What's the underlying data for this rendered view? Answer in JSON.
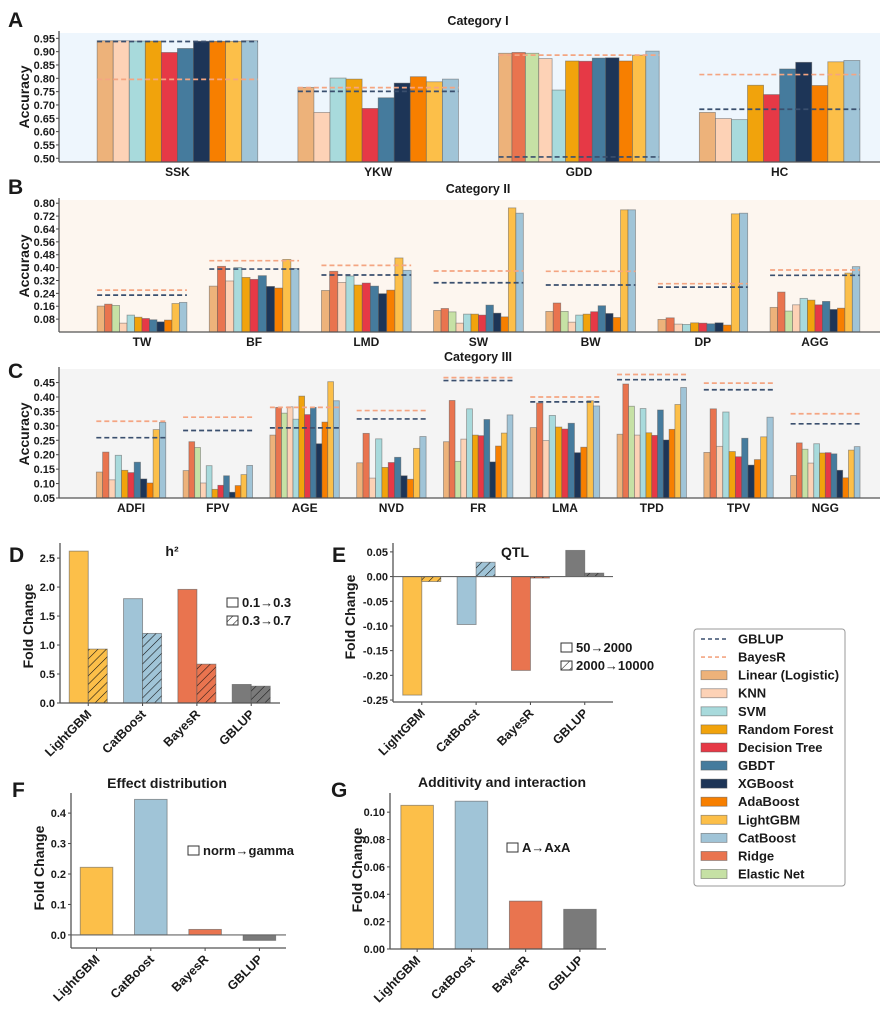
{
  "models": [
    {
      "name": "Linear (Logistic)",
      "color": "#EDB27A"
    },
    {
      "name": "Ridge",
      "color": "#E9744F"
    },
    {
      "name": "Elastic Net",
      "color": "#C6E1A5"
    },
    {
      "name": "KNN",
      "color": "#FDD2B6"
    },
    {
      "name": "SVM",
      "color": "#A8DADC"
    },
    {
      "name": "Random Forest",
      "color": "#F1A30C"
    },
    {
      "name": "Decision Tree",
      "color": "#E63946"
    },
    {
      "name": "GBDT",
      "color": "#457B9D"
    },
    {
      "name": "XGBoost",
      "color": "#1D3557"
    },
    {
      "name": "AdaBoost",
      "color": "#F77F00"
    },
    {
      "name": "LightGBM",
      "color": "#FCBF49"
    },
    {
      "name": "CatBoost",
      "color": "#A0C4D7"
    }
  ],
  "reference_colors": {
    "GBLUP": "#3A4F6E",
    "BayesR": "#F4A582"
  },
  "method_colors": {
    "LightGBM": "#FCBF49",
    "CatBoost": "#A0C4D7",
    "BayesR": "#E9744F",
    "GBLUP": "#7A7A7A"
  },
  "legend": {
    "items": [
      {
        "label": "GBLUP",
        "kind": "dashed-line",
        "color": "#3A4F6E"
      },
      {
        "label": "BayesR",
        "kind": "dashed-line",
        "color": "#F4A582"
      },
      {
        "label": "Linear (Logistic)",
        "kind": "patch",
        "color": "#EDB27A"
      },
      {
        "label": "KNN",
        "kind": "patch",
        "color": "#FDD2B6"
      },
      {
        "label": "SVM",
        "kind": "patch",
        "color": "#A8DADC"
      },
      {
        "label": "Random Forest",
        "kind": "patch",
        "color": "#F1A30C"
      },
      {
        "label": "Decision Tree",
        "kind": "patch",
        "color": "#E63946"
      },
      {
        "label": "GBDT",
        "kind": "patch",
        "color": "#457B9D"
      },
      {
        "label": "XGBoost",
        "kind": "patch",
        "color": "#1D3557"
      },
      {
        "label": "AdaBoost",
        "kind": "patch",
        "color": "#F77F00"
      },
      {
        "label": "LightGBM",
        "kind": "patch",
        "color": "#FCBF49"
      },
      {
        "label": "CatBoost",
        "kind": "patch",
        "color": "#A0C4D7"
      },
      {
        "label": "Ridge",
        "kind": "patch",
        "color": "#E9744F"
      },
      {
        "label": "Elastic Net",
        "kind": "patch",
        "color": "#C6E1A5"
      }
    ]
  },
  "chart_data": [
    {
      "panel": "A",
      "type": "bar",
      "title": "Category I",
      "xlabel": "",
      "ylabel": "Accuracy",
      "categories": [
        "SSK",
        "YKW",
        "GDD",
        "HC"
      ],
      "xlim": [
        -0.59,
        3.5
      ],
      "ylim": [
        0.486,
        0.97
      ],
      "yticks": [
        0.5,
        0.55,
        0.6,
        0.65,
        0.7,
        0.75,
        0.8,
        0.85,
        0.9,
        0.95
      ],
      "ytick_labels": [
        "0.50",
        "0.55",
        "0.60",
        "0.65",
        "0.70",
        "0.75",
        "0.80",
        "0.85",
        "0.90",
        "0.95"
      ],
      "series": [
        {
          "name": "Linear (Logistic)",
          "values": [
            0.941,
            0.766,
            0.894,
            0.672
          ]
        },
        {
          "name": "Ridge",
          "values": [
            null,
            null,
            0.897,
            null
          ]
        },
        {
          "name": "Elastic Net",
          "values": [
            null,
            null,
            0.894,
            null
          ]
        },
        {
          "name": "KNN",
          "values": [
            0.941,
            0.672,
            0.874,
            0.649
          ]
        },
        {
          "name": "SVM",
          "values": [
            0.94,
            0.801,
            0.756,
            0.645
          ]
        },
        {
          "name": "Random Forest",
          "values": [
            0.94,
            0.797,
            0.865,
            0.774
          ]
        },
        {
          "name": "Decision Tree",
          "values": [
            0.897,
            0.687,
            0.864,
            0.739
          ]
        },
        {
          "name": "GBDT",
          "values": [
            0.912,
            0.727,
            0.876,
            0.835
          ]
        },
        {
          "name": "XGBoost",
          "values": [
            0.939,
            0.782,
            0.877,
            0.86
          ]
        },
        {
          "name": "AdaBoost",
          "values": [
            0.939,
            0.806,
            0.865,
            0.773
          ]
        },
        {
          "name": "LightGBM",
          "values": [
            0.939,
            0.787,
            0.887,
            0.862
          ]
        },
        {
          "name": "CatBoost",
          "values": [
            0.941,
            0.797,
            0.902,
            0.867
          ]
        }
      ],
      "reference_lines": [
        {
          "name": "GBLUP",
          "style": "dashed",
          "values": [
            0.938,
            0.751,
            0.505,
            0.684
          ]
        },
        {
          "name": "BayesR",
          "style": "dashed",
          "values": [
            0.796,
            0.765,
            0.887,
            0.814
          ]
        }
      ]
    },
    {
      "panel": "B",
      "type": "bar",
      "title": "Category II",
      "xlabel": "",
      "ylabel": "Accuracy",
      "categories": [
        "TW",
        "BF",
        "LMD",
        "SW",
        "BW",
        "DP",
        "AGG"
      ],
      "xlim": [
        -0.74,
        6.58
      ],
      "ylim": [
        0,
        0.82
      ],
      "yticks": [
        0.08,
        0.16,
        0.24,
        0.32,
        0.4,
        0.48,
        0.56,
        0.64,
        0.72,
        0.8
      ],
      "ytick_labels": [
        "0.08",
        "0.16",
        "0.24",
        "0.32",
        "0.40",
        "0.48",
        "0.56",
        "0.64",
        "0.72",
        "0.80"
      ],
      "series": [
        {
          "name": "Linear (Logistic)",
          "values": [
            0.161,
            0.285,
            0.258,
            0.134,
            0.128,
            0.078,
            0.153
          ]
        },
        {
          "name": "Ridge",
          "values": [
            0.173,
            0.408,
            0.377,
            0.146,
            0.18,
            0.088,
            0.248
          ]
        },
        {
          "name": "Elastic Net",
          "values": [
            0.165,
            null,
            null,
            0.125,
            0.128,
            null,
            0.13
          ]
        },
        {
          "name": "KNN",
          "values": [
            0.055,
            0.317,
            0.308,
            0.055,
            0.061,
            0.049,
            0.169
          ]
        },
        {
          "name": "SVM",
          "values": [
            0.105,
            0.4,
            0.348,
            0.111,
            0.105,
            0.047,
            0.209
          ]
        },
        {
          "name": "Random Forest",
          "values": [
            0.092,
            0.339,
            0.292,
            0.111,
            0.111,
            0.057,
            0.198
          ]
        },
        {
          "name": "Decision Tree",
          "values": [
            0.084,
            0.327,
            0.304,
            0.105,
            0.126,
            0.055,
            0.169
          ]
        },
        {
          "name": "GBDT",
          "values": [
            0.076,
            0.35,
            0.285,
            0.167,
            0.163,
            0.051,
            0.19
          ]
        },
        {
          "name": "XGBoost",
          "values": [
            0.063,
            0.283,
            0.238,
            0.117,
            0.115,
            0.057,
            0.14
          ]
        },
        {
          "name": "AdaBoost",
          "values": [
            0.074,
            0.273,
            0.26,
            0.094,
            0.09,
            0.043,
            0.148
          ]
        },
        {
          "name": "LightGBM",
          "values": [
            0.177,
            0.451,
            0.46,
            0.771,
            0.759,
            0.734,
            0.366
          ]
        },
        {
          "name": "CatBoost",
          "values": [
            0.184,
            0.395,
            0.383,
            0.738,
            0.759,
            0.738,
            0.406
          ]
        }
      ],
      "reference_lines": [
        {
          "name": "GBLUP",
          "style": "dashed",
          "values": [
            0.229,
            0.391,
            0.354,
            0.306,
            0.292,
            0.279,
            0.352
          ]
        },
        {
          "name": "BayesR",
          "style": "dashed",
          "values": [
            0.26,
            0.443,
            0.414,
            0.379,
            0.377,
            0.3,
            0.385
          ]
        }
      ]
    },
    {
      "panel": "C",
      "type": "bar",
      "title": "Category III",
      "xlabel": "",
      "ylabel": "Accuracy",
      "categories": [
        "ADFI",
        "FPV",
        "AGE",
        "NVD",
        "FR",
        "LMA",
        "TPD",
        "TPV",
        "NGG"
      ],
      "xlim": [
        -0.83,
        8.63
      ],
      "ylim": [
        0.05,
        0.497
      ],
      "yticks": [
        0.05,
        0.1,
        0.15,
        0.2,
        0.25,
        0.3,
        0.35,
        0.4,
        0.45
      ],
      "ytick_labels": [
        "0.05",
        "0.10",
        "0.15",
        "0.20",
        "0.25",
        "0.30",
        "0.35",
        "0.40",
        "0.45"
      ],
      "series": [
        {
          "name": "Linear (Logistic)",
          "values": [
            0.14,
            0.145,
            0.268,
            0.172,
            0.245,
            0.294,
            0.271,
            0.208,
            0.128
          ]
        },
        {
          "name": "Ridge",
          "values": [
            0.209,
            0.245,
            0.364,
            0.274,
            0.388,
            0.379,
            0.445,
            0.359,
            0.241
          ]
        },
        {
          "name": "Elastic Net",
          "values": [
            null,
            0.225,
            0.344,
            null,
            0.177,
            null,
            0.368,
            null,
            0.219
          ]
        },
        {
          "name": "KNN",
          "values": [
            0.113,
            0.102,
            0.366,
            0.119,
            0.254,
            0.249,
            0.268,
            0.229,
            0.171
          ]
        },
        {
          "name": "SVM",
          "values": [
            0.198,
            0.162,
            0.323,
            0.255,
            0.359,
            0.336,
            0.36,
            0.348,
            0.238
          ]
        },
        {
          "name": "Random Forest",
          "values": [
            0.146,
            0.08,
            0.403,
            0.156,
            0.268,
            0.296,
            0.276,
            0.211,
            0.206
          ]
        },
        {
          "name": "Decision Tree",
          "values": [
            0.138,
            0.094,
            0.339,
            0.173,
            0.266,
            0.289,
            0.267,
            0.193,
            0.207
          ]
        },
        {
          "name": "GBDT",
          "values": [
            0.174,
            0.127,
            0.364,
            0.191,
            0.322,
            0.309,
            0.355,
            0.257,
            0.203
          ]
        },
        {
          "name": "XGBoost",
          "values": [
            0.116,
            0.07,
            0.238,
            0.127,
            0.175,
            0.207,
            0.251,
            0.164,
            0.146
          ]
        },
        {
          "name": "AdaBoost",
          "values": [
            0.102,
            0.093,
            0.313,
            0.115,
            0.23,
            0.226,
            0.288,
            0.183,
            0.12
          ]
        },
        {
          "name": "LightGBM",
          "values": [
            0.287,
            0.131,
            0.453,
            0.222,
            0.275,
            0.387,
            0.374,
            0.262,
            0.216
          ]
        },
        {
          "name": "CatBoost",
          "values": [
            0.312,
            0.163,
            0.387,
            0.263,
            0.338,
            0.369,
            0.433,
            0.33,
            0.228
          ]
        }
      ],
      "reference_lines": [
        {
          "name": "GBLUP",
          "style": "dashed",
          "values": [
            0.259,
            0.284,
            0.293,
            0.324,
            0.457,
            0.383,
            0.46,
            0.425,
            0.307
          ]
        },
        {
          "name": "BayesR",
          "style": "dashed",
          "values": [
            0.316,
            0.33,
            0.364,
            0.353,
            0.467,
            0.4,
            0.478,
            0.448,
            0.342
          ]
        }
      ]
    },
    {
      "panel": "D",
      "type": "bar",
      "title": "h²",
      "xlabel": "",
      "ylabel": "Fold Change",
      "categories": [
        "LightGBM",
        "CatBoost",
        "BayesR",
        "GBLUP"
      ],
      "xlim": [
        -0.52,
        3.53
      ],
      "ylim": [
        0,
        2.76
      ],
      "yticks": [
        0,
        0.5,
        1.0,
        1.5,
        2.0,
        2.5
      ],
      "ytick_labels": [
        "0.0",
        "0.5",
        "1.0",
        "1.5",
        "2.0",
        "2.5"
      ],
      "legend_position": "center-right",
      "series": [
        {
          "name": "0.1→0.3",
          "hatch": false,
          "values": [
            2.62,
            1.8,
            1.96,
            0.32
          ]
        },
        {
          "name": "0.3→0.7",
          "hatch": true,
          "values": [
            0.93,
            1.2,
            0.67,
            0.29
          ]
        }
      ]
    },
    {
      "panel": "E",
      "type": "bar",
      "title": "QTL",
      "xlabel": "",
      "ylabel": "Fold Change",
      "categories": [
        "LightGBM",
        "CatBoost",
        "BayesR",
        "GBLUP"
      ],
      "xlim": [
        -0.53,
        3.52
      ],
      "ylim": [
        -0.254,
        0.068
      ],
      "yticks": [
        -0.25,
        -0.2,
        -0.15,
        -0.1,
        -0.05,
        0.0,
        0.05
      ],
      "ytick_labels": [
        "-0.25",
        "-0.20",
        "-0.15",
        "-0.10",
        "-0.05",
        "0.00",
        "0.05"
      ],
      "legend_position": "lower-right",
      "series": [
        {
          "name": "50→2000",
          "hatch": false,
          "values": [
            -0.24,
            -0.097,
            -0.19,
            0.053
          ]
        },
        {
          "name": "2000→10000",
          "hatch": true,
          "values": [
            -0.01,
            0.029,
            -0.003,
            0.007
          ]
        }
      ]
    },
    {
      "panel": "F",
      "type": "bar",
      "title": "Effect distribution",
      "xlabel": "",
      "ylabel": "Fold Change",
      "categories": [
        "LightGBM",
        "CatBoost",
        "BayesR",
        "GBLUP"
      ],
      "xlim": [
        -0.47,
        3.49
      ],
      "ylim": [
        -0.043,
        0.466
      ],
      "yticks": [
        0.0,
        0.1,
        0.2,
        0.3,
        0.4
      ],
      "ytick_labels": [
        "0.0",
        "0.1",
        "0.2",
        "0.3",
        "0.4"
      ],
      "legend_position": "center-right",
      "series": [
        {
          "name": "norm→gamma",
          "hatch": false,
          "values": [
            0.222,
            0.445,
            0.018,
            -0.018
          ]
        }
      ]
    },
    {
      "panel": "G",
      "type": "bar",
      "title": "Additivity  and interaction",
      "xlabel": "",
      "ylabel": "Fold Change",
      "categories": [
        "LightGBM",
        "CatBoost",
        "BayesR",
        "GBLUP"
      ],
      "xlim": [
        -0.5,
        3.48
      ],
      "ylim": [
        0,
        0.114
      ],
      "yticks": [
        0.0,
        0.02,
        0.04,
        0.06,
        0.08,
        0.1
      ],
      "ytick_labels": [
        "0.00",
        "0.02",
        "0.04",
        "0.06",
        "0.08",
        "0.10"
      ],
      "legend_position": "center-right",
      "series": [
        {
          "name": "A→AxA",
          "hatch": false,
          "values": [
            0.105,
            0.108,
            0.035,
            0.029
          ]
        }
      ]
    }
  ]
}
